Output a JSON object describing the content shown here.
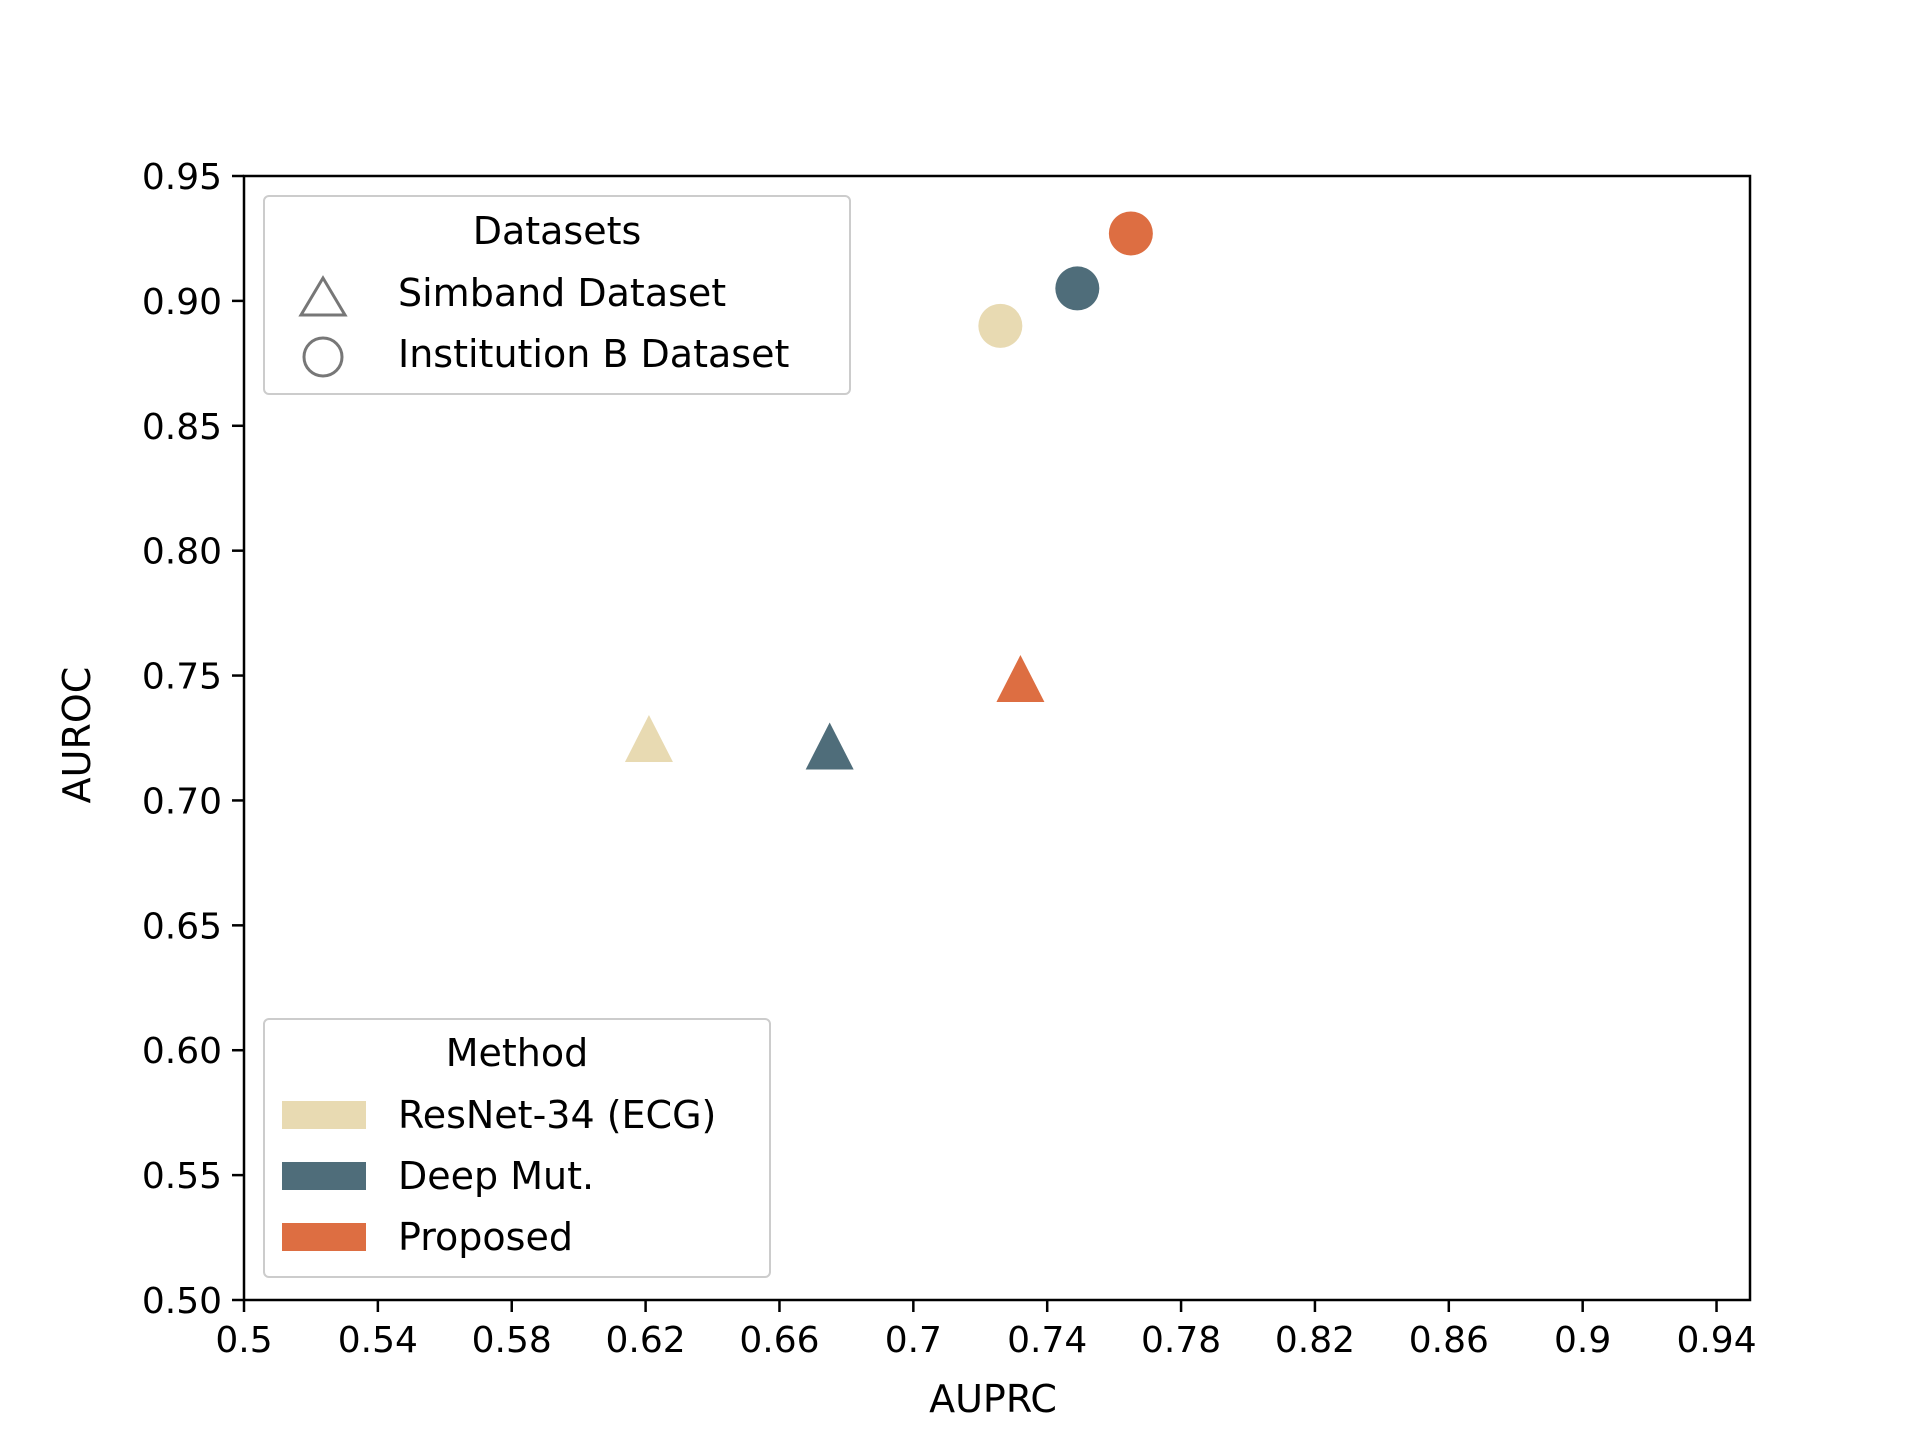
{
  "chart_data": {
    "type": "scatter",
    "xlabel": "AUPRC",
    "ylabel": "AUROC",
    "xlim": [
      0.5,
      0.95
    ],
    "ylim": [
      0.5,
      0.95
    ],
    "x_ticks": [
      "0.5",
      "0.54",
      "0.58",
      "0.62",
      "0.66",
      "0.7",
      "0.74",
      "0.78",
      "0.82",
      "0.86",
      "0.9",
      "0.94"
    ],
    "y_ticks": [
      "0.50",
      "0.55",
      "0.60",
      "0.65",
      "0.70",
      "0.75",
      "0.80",
      "0.85",
      "0.90",
      "0.95"
    ],
    "grid": false,
    "series": [
      {
        "name": "ResNet-34 (ECG)",
        "color": "#e8dab2",
        "points": [
          {
            "dataset": "Simband Dataset",
            "marker": "triangle",
            "x": 0.621,
            "y": 0.723
          },
          {
            "dataset": "Institution B Dataset",
            "marker": "circle",
            "x": 0.726,
            "y": 0.89
          }
        ]
      },
      {
        "name": "Deep Mut.",
        "color": "#4f6d7a",
        "points": [
          {
            "dataset": "Simband Dataset",
            "marker": "triangle",
            "x": 0.675,
            "y": 0.72
          },
          {
            "dataset": "Institution B Dataset",
            "marker": "circle",
            "x": 0.749,
            "y": 0.905
          }
        ]
      },
      {
        "name": "Proposed",
        "color": "#dd6e42",
        "points": [
          {
            "dataset": "Simband Dataset",
            "marker": "triangle",
            "x": 0.732,
            "y": 0.747
          },
          {
            "dataset": "Institution B Dataset",
            "marker": "circle",
            "x": 0.765,
            "y": 0.927
          }
        ]
      }
    ],
    "legends": [
      {
        "title": "Datasets",
        "placement": "upper-left",
        "entries": [
          {
            "label": "Simband Dataset",
            "marker": "triangle"
          },
          {
            "label": "Institution B Dataset",
            "marker": "circle"
          }
        ]
      },
      {
        "title": "Method",
        "placement": "lower-left",
        "entries": [
          {
            "label": "ResNet-34 (ECG)",
            "color": "#e8dab2"
          },
          {
            "label": "Deep Mut.",
            "color": "#4f6d7a"
          },
          {
            "label": "Proposed",
            "color": "#dd6e42"
          }
        ]
      }
    ]
  }
}
